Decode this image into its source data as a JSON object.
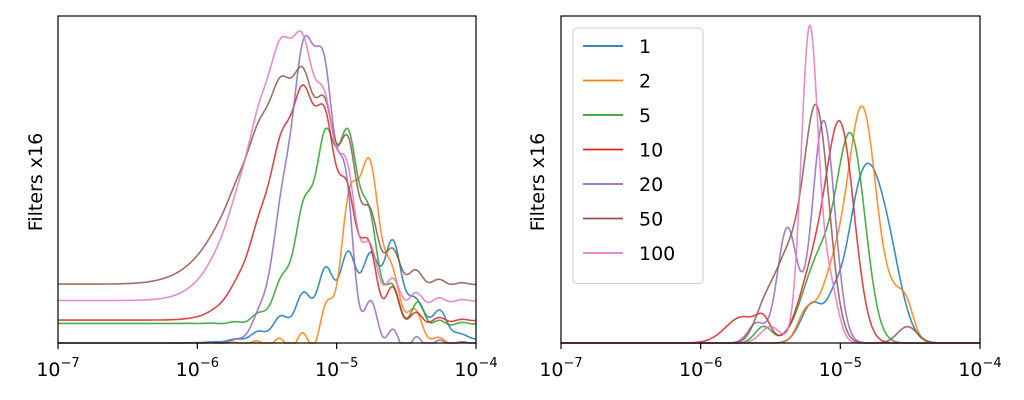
{
  "chart_data": [
    {
      "type": "line",
      "title": "",
      "xlabel": "",
      "ylabel": "Filters x16",
      "xscale": "log",
      "xlim": [
        1e-07,
        0.0001
      ],
      "ylim": [
        0,
        1
      ],
      "xticks": [
        {
          "value": 1e-07,
          "base": "10",
          "exp": "−7"
        },
        {
          "value": 1e-06,
          "base": "10",
          "exp": "−6"
        },
        {
          "value": 1e-05,
          "base": "10",
          "exp": "−5"
        },
        {
          "value": 0.0001,
          "base": "10",
          "exp": "−4"
        }
      ],
      "legend": null,
      "series": [
        {
          "color": "#1f77b4",
          "base": 0.0,
          "components": [
            [
              0.25,
              -4.85,
              0.35
            ],
            [
              0.1,
              -4.6,
              0.06
            ],
            [
              0.035,
              -4.25,
              0.04
            ]
          ],
          "wiggle": 0.006
        },
        {
          "color": "#ff7f0e",
          "base": 0.0,
          "components": [
            [
              0.45,
              -4.82,
              0.13
            ],
            [
              0.12,
              -4.72,
              0.2
            ],
            [
              0.04,
              -4.45,
              0.06
            ]
          ],
          "wiggle": 0.007
        },
        {
          "color": "#2ca02c",
          "base": 0.06,
          "components": [
            [
              0.58,
              -5.02,
              0.22
            ],
            [
              0.06,
              -4.85,
              0.06
            ],
            [
              0.04,
              -4.4,
              0.04
            ]
          ],
          "wiggle": 0.007
        },
        {
          "color": "#d62728",
          "base": 0.07,
          "components": [
            [
              0.7,
              -5.22,
              0.27
            ],
            [
              0.05,
              -4.8,
              0.05
            ],
            [
              0.03,
              -4.6,
              0.04
            ]
          ],
          "wiggle": 0.006
        },
        {
          "color": "#9467bd",
          "base": 0.0,
          "components": [
            [
              0.95,
              -5.18,
              0.18
            ],
            [
              0.12,
              -4.95,
              0.05
            ],
            [
              0.05,
              -4.7,
              0.05
            ]
          ],
          "wiggle": 0.008
        },
        {
          "color": "#8c564b",
          "base": 0.18,
          "components": [
            [
              0.65,
              -5.3,
              0.35
            ],
            [
              0.06,
              -4.9,
              0.06
            ]
          ],
          "wiggle": 0.006
        },
        {
          "color": "#e377c2",
          "base": 0.13,
          "components": [
            [
              0.82,
              -5.32,
              0.3
            ],
            [
              0.05,
              -4.95,
              0.06
            ]
          ],
          "wiggle": 0.006
        }
      ]
    },
    {
      "type": "line",
      "title": "",
      "xlabel": "",
      "ylabel": "Filters x16",
      "xscale": "log",
      "xlim": [
        1e-07,
        0.0001
      ],
      "ylim": [
        0,
        1
      ],
      "xticks": [
        {
          "value": 1e-07,
          "base": "10",
          "exp": "−7"
        },
        {
          "value": 1e-06,
          "base": "10",
          "exp": "−6"
        },
        {
          "value": 1e-05,
          "base": "10",
          "exp": "−5"
        },
        {
          "value": 0.0001,
          "base": "10",
          "exp": "−4"
        }
      ],
      "legend": {
        "placement": "upper-left",
        "entries": [
          "1",
          "2",
          "5",
          "10",
          "20",
          "50",
          "100"
        ]
      },
      "series": [
        {
          "name": "1",
          "color": "#1f77b4",
          "base": 0.0,
          "components": [
            [
              0.5,
              -4.83,
              0.12
            ],
            [
              0.2,
              -4.65,
              0.1
            ],
            [
              0.12,
              -5.2,
              0.08
            ],
            [
              0.06,
              -5.05,
              0.05
            ]
          ],
          "wiggle": 0.0
        },
        {
          "name": "2",
          "color": "#ff7f0e",
          "base": 0.0,
          "components": [
            [
              0.7,
              -4.84,
              0.1
            ],
            [
              0.2,
              -5.05,
              0.1
            ],
            [
              0.08,
              -5.25,
              0.06
            ],
            [
              0.12,
              -4.6,
              0.08
            ],
            [
              0.06,
              -4.52,
              0.05
            ]
          ],
          "wiggle": 0.0
        },
        {
          "name": "5",
          "color": "#2ca02c",
          "base": 0.0,
          "components": [
            [
              0.6,
              -4.92,
              0.1
            ],
            [
              0.25,
              -5.15,
              0.12
            ],
            [
              0.05,
              -5.55,
              0.06
            ]
          ],
          "wiggle": 0.0
        },
        {
          "name": "10",
          "color": "#d62728",
          "base": 0.0,
          "components": [
            [
              0.65,
              -5.0,
              0.1
            ],
            [
              0.2,
              -5.2,
              0.1
            ],
            [
              0.08,
              -5.7,
              0.12
            ],
            [
              0.05,
              -5.55,
              0.05
            ]
          ],
          "wiggle": 0.0
        },
        {
          "name": "20",
          "color": "#9467bd",
          "base": 0.0,
          "components": [
            [
              0.68,
              -5.12,
              0.08
            ],
            [
              0.35,
              -5.38,
              0.07
            ],
            [
              0.06,
              -5.6,
              0.06
            ]
          ],
          "wiggle": 0.0
        },
        {
          "name": "50",
          "color": "#8c564b",
          "base": 0.0,
          "components": [
            [
              0.7,
              -5.17,
              0.09
            ],
            [
              0.25,
              -5.38,
              0.1
            ],
            [
              0.08,
              -5.55,
              0.07
            ],
            [
              0.05,
              -4.52,
              0.07
            ]
          ],
          "wiggle": 0.0
        },
        {
          "name": "100",
          "color": "#e377c2",
          "base": 0.0,
          "components": [
            [
              0.96,
              -5.22,
              0.06
            ],
            [
              0.18,
              -5.08,
              0.06
            ],
            [
              0.05,
              -5.5,
              0.07
            ]
          ],
          "wiggle": 0.0
        }
      ]
    }
  ]
}
